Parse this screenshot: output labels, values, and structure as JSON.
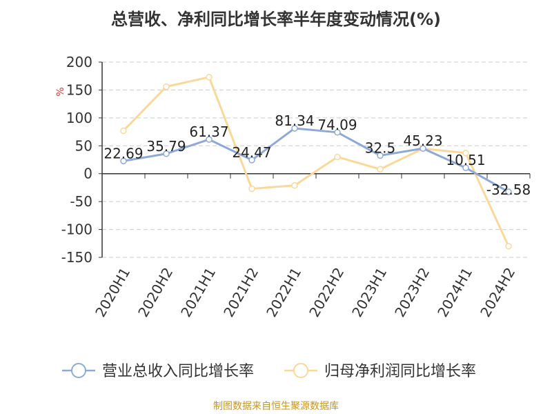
{
  "title": "总营收、净利同比增长率半年度变动情况(%)",
  "source": "制图数据来自恒生聚源数据库",
  "chart_data": {
    "type": "line",
    "title": "总营收、净利同比增长率半年度变动情况(%)",
    "xlabel": "",
    "ylabel": "%",
    "ylim": [
      -150,
      200
    ],
    "yticks": [
      200,
      150,
      100,
      50,
      0,
      -50,
      -100,
      -150
    ],
    "grid": true,
    "legend_position": "bottom",
    "categories": [
      "2020H1",
      "2020H2",
      "2021H1",
      "2021H2",
      "2022H1",
      "2022H2",
      "2023H1",
      "2023H2",
      "2024H1",
      "2024H2"
    ],
    "series": [
      {
        "name": "营业总收入同比增长率",
        "color": "#8ea9d8",
        "values": [
          22.69,
          35.79,
          61.37,
          24.47,
          81.34,
          74.09,
          32.5,
          45.23,
          10.51,
          -32.58
        ],
        "data_labels": [
          "22.69",
          "35.79",
          "61.37",
          "24.47",
          "81.34",
          "74.09",
          "32.5",
          "45.23",
          "10.51",
          "-32.58"
        ]
      },
      {
        "name": "归母净利润同比增长率",
        "color": "#fad89a",
        "values": [
          77,
          156,
          173,
          -27,
          -21,
          30,
          8,
          45,
          37,
          -130
        ]
      }
    ]
  }
}
